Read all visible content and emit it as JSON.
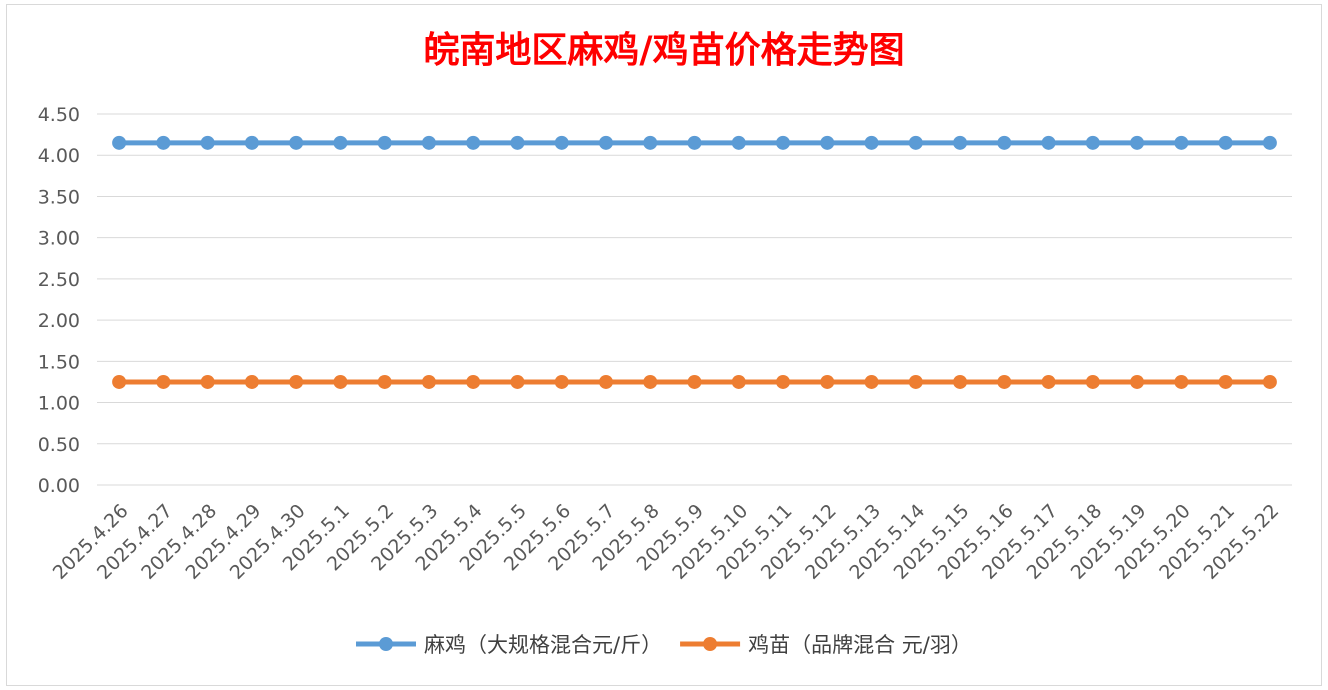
{
  "chart_data": {
    "type": "line",
    "title": "皖南地区麻鸡/鸡苗价格走势图",
    "xlabel": "",
    "ylabel": "",
    "ylim": [
      0,
      4.5
    ],
    "y_ticks": [
      "0.00",
      "0.50",
      "1.00",
      "1.50",
      "2.00",
      "2.50",
      "3.00",
      "3.50",
      "4.00",
      "4.50"
    ],
    "grid": true,
    "legend_position": "bottom",
    "categories": [
      "2025.4.26",
      "2025.4.27",
      "2025.4.28",
      "2025.4.29",
      "2025.4.30",
      "2025.5.1",
      "2025.5.2",
      "2025.5.3",
      "2025.5.4",
      "2025.5.5",
      "2025.5.6",
      "2025.5.7",
      "2025.5.8",
      "2025.5.9",
      "2025.5.10",
      "2025.5.11",
      "2025.5.12",
      "2025.5.13",
      "2025.5.14",
      "2025.5.15",
      "2025.5.16",
      "2025.5.17",
      "2025.5.18",
      "2025.5.19",
      "2025.5.20",
      "2025.5.21",
      "2025.5.22"
    ],
    "series": [
      {
        "name": "麻鸡（大规格混合元/斤）",
        "color": "#5b9bd5",
        "values": [
          4.15,
          4.15,
          4.15,
          4.15,
          4.15,
          4.15,
          4.15,
          4.15,
          4.15,
          4.15,
          4.15,
          4.15,
          4.15,
          4.15,
          4.15,
          4.15,
          4.15,
          4.15,
          4.15,
          4.15,
          4.15,
          4.15,
          4.15,
          4.15,
          4.15,
          4.15,
          4.15
        ]
      },
      {
        "name": "鸡苗（品牌混合 元/羽）",
        "color": "#ed7d31",
        "values": [
          1.25,
          1.25,
          1.25,
          1.25,
          1.25,
          1.25,
          1.25,
          1.25,
          1.25,
          1.25,
          1.25,
          1.25,
          1.25,
          1.25,
          1.25,
          1.25,
          1.25,
          1.25,
          1.25,
          1.25,
          1.25,
          1.25,
          1.25,
          1.25,
          1.25,
          1.25,
          1.25
        ]
      }
    ]
  }
}
